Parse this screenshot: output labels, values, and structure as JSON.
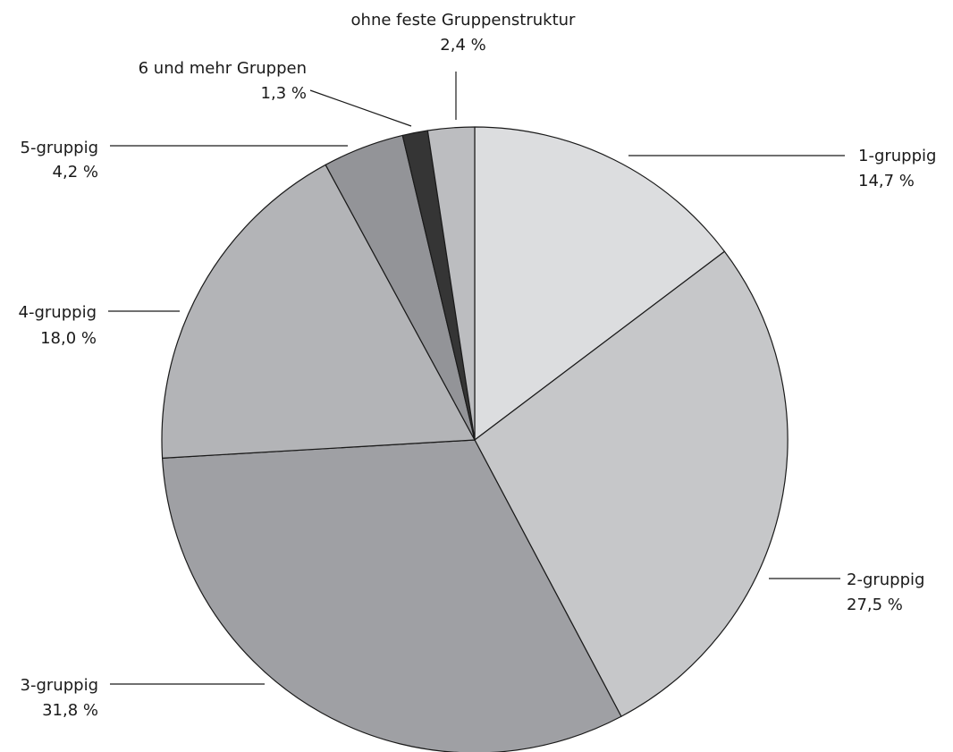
{
  "chart_data": {
    "type": "pie",
    "title": "",
    "unit": "%",
    "slices": [
      {
        "label": "1-gruppig",
        "value": 14.7,
        "value_label": "14,7 %",
        "color": "#dcdddf"
      },
      {
        "label": "2-gruppig",
        "value": 27.5,
        "value_label": "27,5 %",
        "color": "#c6c7c9"
      },
      {
        "label": "3-gruppig",
        "value": 31.8,
        "value_label": "31,8 %",
        "color": "#9fa0a4"
      },
      {
        "label": "4-gruppig",
        "value": 18.0,
        "value_label": "18,0 %",
        "color": "#b3b4b7"
      },
      {
        "label": "5-gruppig",
        "value": 4.2,
        "value_label": "4,2 %",
        "color": "#939498"
      },
      {
        "label": "6 und mehr Gruppen",
        "value": 1.3,
        "value_label": "1,3 %",
        "color": "#353535"
      },
      {
        "label": "ohne feste Gruppenstruktur",
        "value": 2.4,
        "value_label": "2,4 %",
        "color": "#bcbdc0"
      }
    ]
  }
}
